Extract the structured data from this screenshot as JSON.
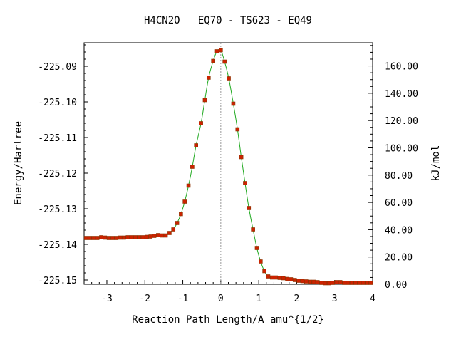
{
  "chart_data": {
    "type": "line",
    "title": "H4CN2O   EQ70 - TS623 - EQ49",
    "xlabel": "Reaction Path Length/A amu^{1/2}",
    "ylabel_left": "Energy/Hartree",
    "ylabel_right": "kJ/mol",
    "xlim": [
      -3.6,
      4.0
    ],
    "ylim_left": [
      -225.1512,
      -225.0834
    ],
    "ylim_right": [
      0.0,
      177.0
    ],
    "x_ticks": [
      {
        "value": -3,
        "label": "-3"
      },
      {
        "value": -2,
        "label": "-2"
      },
      {
        "value": -1,
        "label": "-1"
      },
      {
        "value": 0,
        "label": "0"
      },
      {
        "value": 1,
        "label": "1"
      },
      {
        "value": 2,
        "label": "2"
      },
      {
        "value": 3,
        "label": "3"
      },
      {
        "value": 4,
        "label": "4"
      }
    ],
    "y_ticks_left": [
      {
        "value": -225.09,
        "label": "-225.09"
      },
      {
        "value": -225.1,
        "label": "-225.10"
      },
      {
        "value": -225.11,
        "label": "-225.11"
      },
      {
        "value": -225.12,
        "label": "-225.12"
      },
      {
        "value": -225.13,
        "label": "-225.13"
      },
      {
        "value": -225.14,
        "label": "-225.14"
      },
      {
        "value": -225.15,
        "label": "-225.15"
      }
    ],
    "y_ticks_right": [
      {
        "value": 0,
        "label": "0.00"
      },
      {
        "value": 20,
        "label": "20.00"
      },
      {
        "value": 40,
        "label": "40.00"
      },
      {
        "value": 60,
        "label": "60.00"
      },
      {
        "value": 80,
        "label": "80.00"
      },
      {
        "value": 100,
        "label": "100.00"
      },
      {
        "value": 120,
        "label": "120.00"
      },
      {
        "value": 140,
        "label": "140.00"
      },
      {
        "value": 160,
        "label": "160.00"
      }
    ],
    "ts_marker_x": 0.0,
    "series": [
      {
        "line_color": "#22aa22",
        "marker_color": "#cc2200",
        "points": [
          [
            -3.55,
            -225.1382
          ],
          [
            -3.45,
            -225.1382
          ],
          [
            -3.35,
            -225.1382
          ],
          [
            -3.25,
            -225.1382
          ],
          [
            -3.15,
            -225.138
          ],
          [
            -3.05,
            -225.1381
          ],
          [
            -2.95,
            -225.1382
          ],
          [
            -2.85,
            -225.1382
          ],
          [
            -2.75,
            -225.1382
          ],
          [
            -2.65,
            -225.1381
          ],
          [
            -2.55,
            -225.1381
          ],
          [
            -2.45,
            -225.138
          ],
          [
            -2.35,
            -225.138
          ],
          [
            -2.25,
            -225.138
          ],
          [
            -2.15,
            -225.138
          ],
          [
            -2.05,
            -225.138
          ],
          [
            -1.95,
            -225.1379
          ],
          [
            -1.85,
            -225.1378
          ],
          [
            -1.75,
            -225.1376
          ],
          [
            -1.65,
            -225.1374
          ],
          [
            -1.55,
            -225.1375
          ],
          [
            -1.45,
            -225.1375
          ],
          [
            -1.35,
            -225.1368
          ],
          [
            -1.25,
            -225.1358
          ],
          [
            -1.15,
            -225.134
          ],
          [
            -1.05,
            -225.1315
          ],
          [
            -0.95,
            -225.128
          ],
          [
            -0.85,
            -225.1235
          ],
          [
            -0.75,
            -225.1182
          ],
          [
            -0.65,
            -225.1122
          ],
          [
            -0.52,
            -225.106
          ],
          [
            -0.42,
            -225.0995
          ],
          [
            -0.32,
            -225.0932
          ],
          [
            -0.2,
            -225.0885
          ],
          [
            -0.1,
            -225.0858
          ],
          [
            0.0,
            -225.0855
          ],
          [
            0.1,
            -225.0887
          ],
          [
            0.21,
            -225.0934
          ],
          [
            0.33,
            -225.1005
          ],
          [
            0.44,
            -225.1077
          ],
          [
            0.54,
            -225.1155
          ],
          [
            0.64,
            -225.1228
          ],
          [
            0.74,
            -225.1298
          ],
          [
            0.85,
            -225.1358
          ],
          [
            0.95,
            -225.141
          ],
          [
            1.05,
            -225.1448
          ],
          [
            1.15,
            -225.1475
          ],
          [
            1.25,
            -225.149
          ],
          [
            1.35,
            -225.1493
          ],
          [
            1.45,
            -225.1493
          ],
          [
            1.55,
            -225.1494
          ],
          [
            1.65,
            -225.1495
          ],
          [
            1.75,
            -225.1497
          ],
          [
            1.85,
            -225.1498
          ],
          [
            1.95,
            -225.15
          ],
          [
            2.05,
            -225.1502
          ],
          [
            2.15,
            -225.1503
          ],
          [
            2.25,
            -225.1504
          ],
          [
            2.35,
            -225.1505
          ],
          [
            2.45,
            -225.1505
          ],
          [
            2.55,
            -225.1506
          ],
          [
            2.65,
            -225.1508
          ],
          [
            2.75,
            -225.1509
          ],
          [
            2.85,
            -225.1509
          ],
          [
            2.95,
            -225.1508
          ],
          [
            3.05,
            -225.1506
          ],
          [
            3.15,
            -225.1506
          ],
          [
            3.25,
            -225.1508
          ],
          [
            3.35,
            -225.1508
          ],
          [
            3.45,
            -225.1508
          ],
          [
            3.55,
            -225.1508
          ],
          [
            3.65,
            -225.1508
          ],
          [
            3.75,
            -225.1508
          ],
          [
            3.85,
            -225.1508
          ],
          [
            3.95,
            -225.1508
          ]
        ]
      }
    ]
  }
}
